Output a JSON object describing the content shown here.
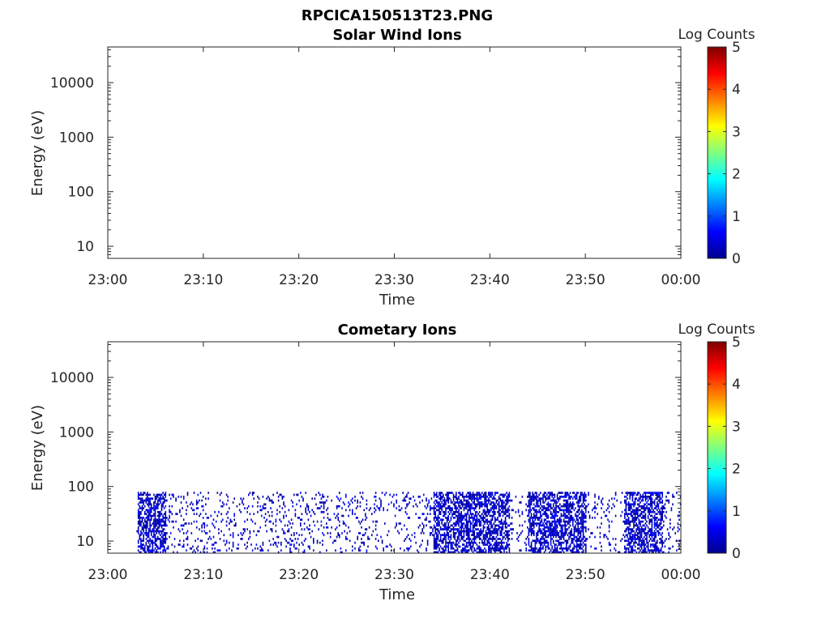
{
  "figure": {
    "title": "RPCICA150513T23.PNG"
  },
  "colorbar": {
    "label": "Log Counts",
    "ticks": [
      "0",
      "1",
      "2",
      "3",
      "4",
      "5"
    ],
    "colormap": "jet",
    "range": [
      0,
      5
    ]
  },
  "chart_data": [
    {
      "type": "heatmap",
      "title": "Solar Wind Ions",
      "xlabel": "Time",
      "ylabel": "Energy (eV)",
      "x_tick_labels": [
        "23:00",
        "23:10",
        "23:20",
        "23:30",
        "23:40",
        "23:50",
        "00:00"
      ],
      "y_tick_labels": [
        "10",
        "100",
        "1000",
        "10000"
      ],
      "y_scale": "log",
      "xlim": [
        "23:00",
        "00:00"
      ],
      "ylim": [
        6,
        45000
      ],
      "data": "empty (no counts)",
      "colorbar_label": "Log Counts",
      "colorbar_range": [
        0,
        5
      ]
    },
    {
      "type": "heatmap",
      "title": "Cometary Ions",
      "xlabel": "Time",
      "ylabel": "Energy (eV)",
      "x_tick_labels": [
        "23:00",
        "23:10",
        "23:20",
        "23:30",
        "23:40",
        "23:50",
        "00:00"
      ],
      "y_tick_labels": [
        "10",
        "100",
        "1000",
        "10000"
      ],
      "y_scale": "log",
      "xlim": [
        "23:00",
        "00:00"
      ],
      "ylim": [
        6,
        45000
      ],
      "energy_range_with_counts": [
        6,
        80
      ],
      "time_range_with_counts": [
        "23:03",
        "00:00"
      ],
      "typical_log_counts": [
        0,
        0.7
      ],
      "dense_time_ranges": [
        [
          "23:03",
          "23:06"
        ],
        [
          "23:34",
          "23:42"
        ],
        [
          "23:44",
          "23:50"
        ],
        [
          "23:54",
          "23:58"
        ]
      ],
      "colorbar_label": "Log Counts",
      "colorbar_range": [
        0,
        5
      ]
    }
  ]
}
